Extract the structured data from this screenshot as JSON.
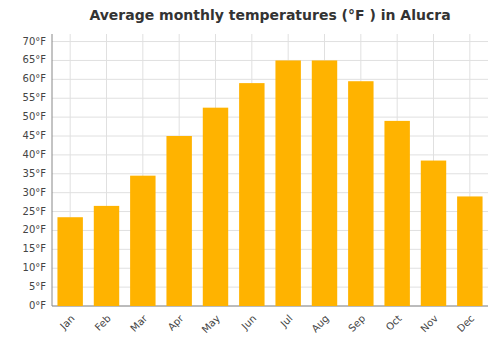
{
  "chart_data": {
    "type": "bar",
    "title": "Average monthly temperatures (°F ) in Alucra",
    "categories": [
      "Jan",
      "Feb",
      "Mar",
      "Apr",
      "May",
      "Jun",
      "Jul",
      "Aug",
      "Sep",
      "Oct",
      "Nov",
      "Dec"
    ],
    "values": [
      23.5,
      26.5,
      34.5,
      45,
      52.5,
      59,
      65,
      65,
      59.5,
      49,
      38.5,
      29
    ],
    "color": "#FFB300",
    "ylim": [
      0,
      72
    ],
    "yticks": [
      {
        "value": 0,
        "label": "0°F"
      },
      {
        "value": 5,
        "label": "5°F"
      },
      {
        "value": 10,
        "label": "10°F"
      },
      {
        "value": 15,
        "label": "15°F"
      },
      {
        "value": 20,
        "label": "20°F"
      },
      {
        "value": 25,
        "label": "25°F"
      },
      {
        "value": 30,
        "label": "30°F"
      },
      {
        "value": 35,
        "label": "35°F"
      },
      {
        "value": 40,
        "label": "40°F"
      },
      {
        "value": 45,
        "label": "45°F"
      },
      {
        "value": 50,
        "label": "50°F"
      },
      {
        "value": 55,
        "label": "55°F"
      },
      {
        "value": 60,
        "label": "60°F"
      },
      {
        "value": 65,
        "label": "65°F"
      },
      {
        "value": 70,
        "label": "70°F"
      }
    ],
    "grid": true
  }
}
